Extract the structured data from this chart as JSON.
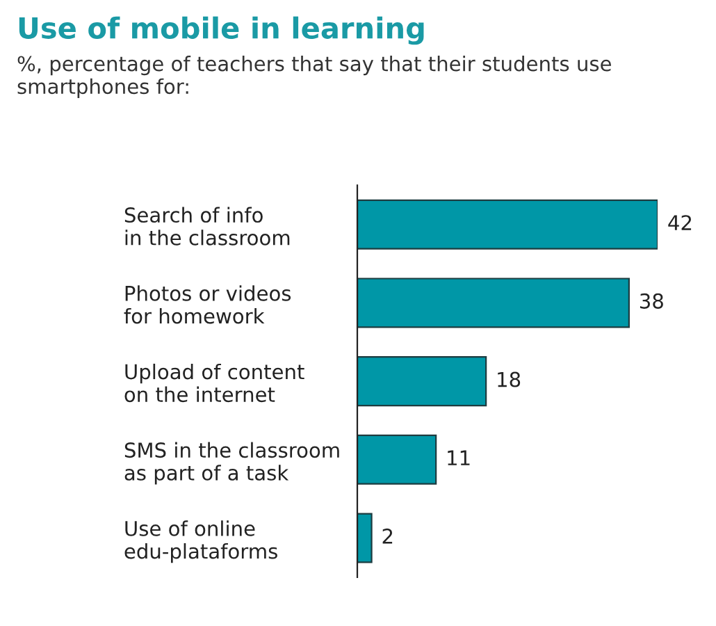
{
  "chart_data": {
    "type": "bar",
    "orientation": "horizontal",
    "title": "Use of mobile in learning",
    "subtitle": "%, percentage of teachers that say that their students use smartphones for:",
    "categories": [
      "Search of info\nin the classroom",
      "Photos or videos\nfor homework",
      "Upload of content\non the internet",
      "SMS in the classroom\nas part of a task",
      "Use of online\nedu-plataforms"
    ],
    "values": [
      42,
      38,
      18,
      11,
      2
    ],
    "color": "#0097a7",
    "data_labels": true,
    "grid": false,
    "legend": false
  }
}
